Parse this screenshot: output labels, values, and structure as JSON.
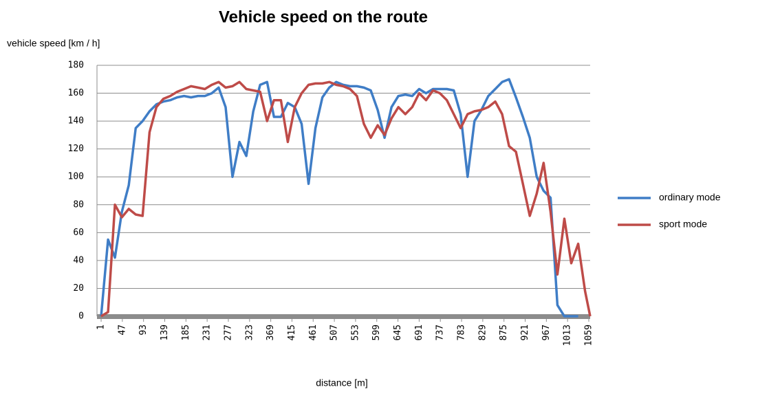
{
  "chart_data": {
    "type": "line",
    "title": "Vehicle speed on the route",
    "y_label": "vehicle speed [km / h]",
    "x_label": "distance [m]",
    "x": [
      1,
      16,
      31,
      46,
      61,
      76,
      91,
      106,
      121,
      136,
      151,
      166,
      181,
      196,
      211,
      226,
      241,
      256,
      271,
      286,
      301,
      316,
      331,
      346,
      361,
      376,
      391,
      406,
      421,
      436,
      451,
      466,
      481,
      496,
      511,
      526,
      541,
      556,
      571,
      586,
      601,
      616,
      631,
      646,
      661,
      676,
      691,
      706,
      721,
      736,
      751,
      766,
      781,
      796,
      811,
      826,
      841,
      856,
      871,
      886,
      901,
      916,
      931,
      946,
      961,
      976,
      991,
      1006,
      1021,
      1036,
      1051,
      1062
    ],
    "series": [
      {
        "name": "ordinary mode",
        "color": "#3f7dc6",
        "values": [
          0,
          55,
          42,
          75,
          94,
          135,
          140,
          147,
          152,
          154,
          155,
          157,
          158,
          157,
          158,
          158,
          160,
          164,
          150,
          100,
          125,
          115,
          147,
          166,
          168,
          143,
          143,
          153,
          150,
          138,
          95,
          135,
          157,
          164,
          168,
          166,
          165,
          165,
          164,
          162,
          148,
          128,
          150,
          158,
          159,
          158,
          163,
          160,
          163,
          163,
          163,
          162,
          145,
          100,
          140,
          148,
          158,
          163,
          168,
          170,
          157,
          143,
          128,
          100,
          90,
          85,
          8,
          0,
          0,
          0,
          null,
          null
        ]
      },
      {
        "name": "sport mode",
        "color": "#be4b48",
        "values": [
          0,
          3,
          80,
          71,
          77,
          73,
          72,
          132,
          150,
          156,
          158,
          161,
          163,
          165,
          164,
          163,
          166,
          168,
          164,
          165,
          168,
          163,
          162,
          161,
          140,
          155,
          155,
          125,
          150,
          160,
          166,
          167,
          167,
          168,
          166,
          165,
          163,
          158,
          138,
          128,
          137,
          130,
          142,
          150,
          145,
          150,
          160,
          155,
          162,
          160,
          155,
          145,
          135,
          145,
          147,
          148,
          150,
          154,
          145,
          122,
          118,
          95,
          72,
          88,
          110,
          75,
          30,
          70,
          38,
          52,
          18,
          0
        ]
      }
    ],
    "xlim": [
      -8,
      1062
    ],
    "xticks": [
      1,
      47,
      93,
      139,
      185,
      231,
      277,
      323,
      369,
      415,
      461,
      507,
      553,
      599,
      645,
      691,
      737,
      783,
      829,
      875,
      921,
      967,
      1013,
      1059
    ],
    "ylim": [
      0,
      180
    ],
    "yticks": [
      0,
      20,
      40,
      60,
      80,
      100,
      120,
      140,
      160,
      180
    ],
    "grid": true,
    "legend": "right"
  }
}
